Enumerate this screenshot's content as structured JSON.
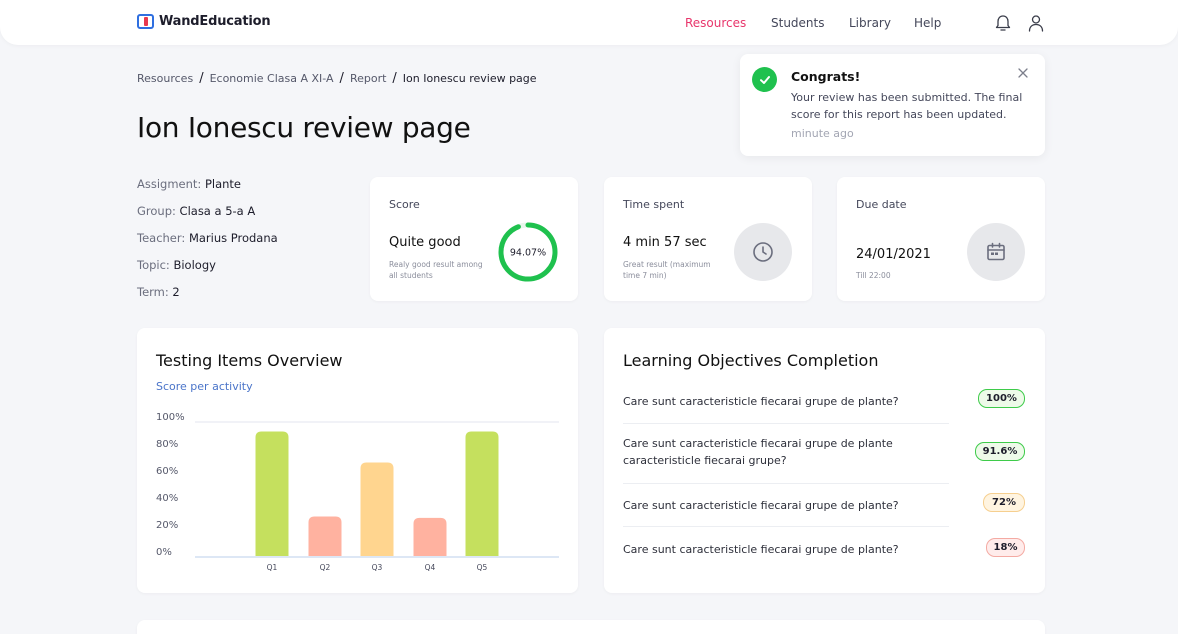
{
  "app": {
    "brand": "WandEducation",
    "brand_colors": {
      "primary": "#2f6fe0",
      "accent": "#e8384f"
    }
  },
  "nav": {
    "items": [
      {
        "label": "Resources",
        "active": true
      },
      {
        "label": "Students",
        "active": false
      },
      {
        "label": "Library",
        "active": false
      },
      {
        "label": "Help",
        "active": false
      }
    ],
    "active_color": "#e8356b",
    "icons": [
      "bell-icon",
      "user-icon"
    ]
  },
  "breadcrumb": {
    "items": [
      "Resources",
      "Economie Clasa A XI-A",
      "Report",
      "Ion Ionescu review page"
    ],
    "separator": "/"
  },
  "page": {
    "title": "Ion Ionescu review page"
  },
  "meta": {
    "rows": [
      {
        "label": "Assigment:",
        "value": "Plante"
      },
      {
        "label": "Group:",
        "value": "Clasa a 5-a A"
      },
      {
        "label": "Teacher:",
        "value": "Marius Prodana"
      },
      {
        "label": "Topic:",
        "value": "Biology"
      },
      {
        "label": "Term:",
        "value": "2"
      }
    ]
  },
  "stats": {
    "score": {
      "title": "Score",
      "main": "Quite good",
      "sub": "Realy good result among all students",
      "value_label": "94.07%",
      "value": 94.07,
      "color": "#1fc14e"
    },
    "time": {
      "title": "Time spent",
      "main": "4 min 57 sec",
      "sub": "Great result (maximum time 7 min)",
      "icon": "clock-icon"
    },
    "due": {
      "title": "Due date",
      "main": "24/01/2021",
      "sub": "Till 22:00",
      "icon": "calendar-icon"
    }
  },
  "toast": {
    "title": "Congrats!",
    "body": "Your review has been submitted. The final score for this report has been updated.",
    "time": "minute ago",
    "icon": "check-icon",
    "color": "#1fc14e"
  },
  "testing_overview": {
    "title": "Testing Items Overview",
    "subtitle": "Score per activity"
  },
  "chart_data": {
    "type": "bar",
    "categories": [
      "Q1",
      "Q2",
      "Q3",
      "Q4",
      "Q5"
    ],
    "values": [
      93,
      30,
      70,
      29,
      93
    ],
    "colors": [
      "#c5e05e",
      "#ffb2a0",
      "#ffd58f",
      "#ffb2a0",
      "#c5e05e"
    ],
    "title": "",
    "xlabel": "",
    "ylabel": "",
    "ylim": [
      0,
      100
    ],
    "y_ticks": [
      "100%",
      "80%",
      "60%",
      "40%",
      "20%",
      "0%"
    ],
    "grid": false
  },
  "objectives": {
    "title": "Learning Objectives Completion",
    "items": [
      {
        "text": "Care sunt caracteristicle fiecarai grupe de plante?",
        "value": "100%",
        "bg": "#eefae9",
        "border": "#3ecb4a"
      },
      {
        "text": "Care sunt caracteristicle fiecarai grupe de plante caracteristicle fiecarai grupe?",
        "value": "91.6%",
        "bg": "#eefae9",
        "border": "#3ecb4a"
      },
      {
        "text": "Care sunt caracteristicle fiecarai grupe de plante?",
        "value": "72%",
        "bg": "#fff4e0",
        "border": "#f6cf8f"
      },
      {
        "text": "Care sunt caracteristicle fiecarai grupe de plante?",
        "value": "18%",
        "bg": "#ffeceb",
        "border": "#f4aaa3"
      }
    ]
  }
}
